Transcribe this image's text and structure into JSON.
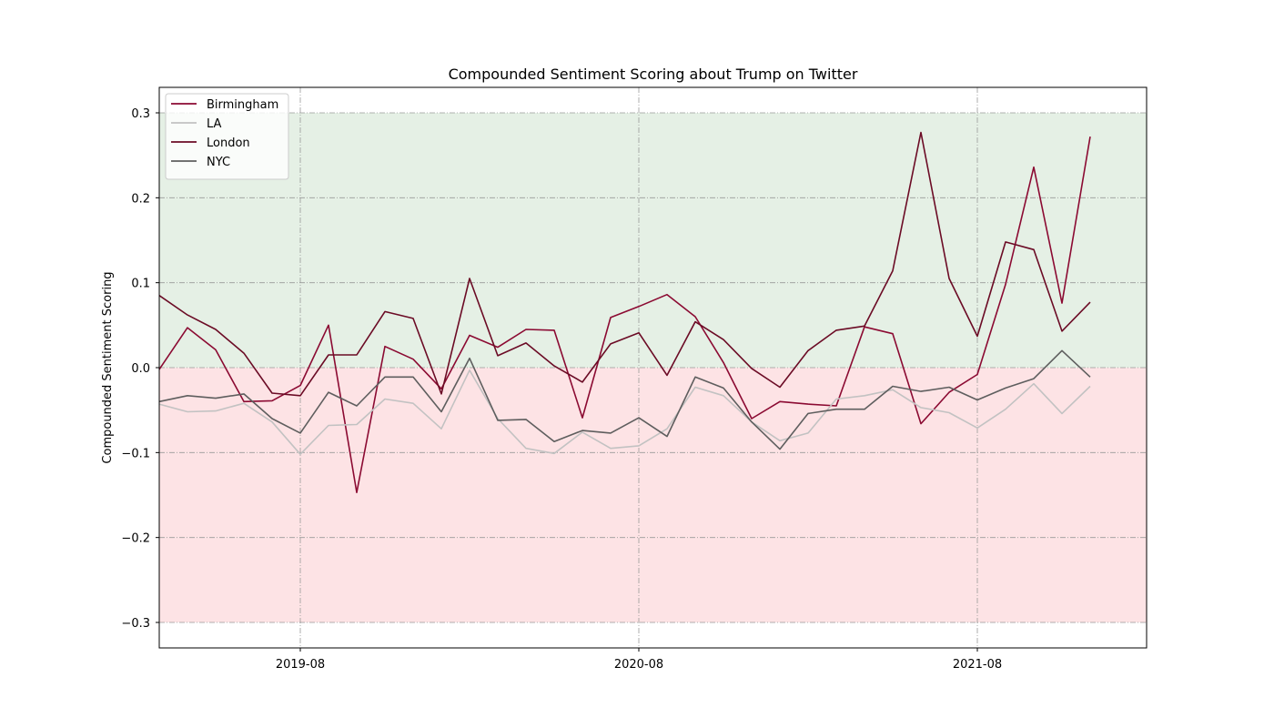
{
  "chart_data": {
    "type": "line",
    "title": "Compounded Sentiment Scoring about Trump on Twitter",
    "xlabel": "",
    "ylabel": "Compounded Sentiment Scoring",
    "x_start": "2019-03",
    "x_end": "2022-01",
    "xlim": [
      "2019-03",
      "2022-02"
    ],
    "ylim": [
      -0.33,
      0.33
    ],
    "x_ticks": [
      "2019-08",
      "2020-08",
      "2021-08"
    ],
    "y_ticks": [
      0.3,
      0.2,
      0.1,
      0.0,
      -0.1,
      -0.2,
      -0.3
    ],
    "y_tick_labels": [
      "0.3",
      "0.2",
      "0.1",
      "0.0",
      "−0.1",
      "−0.2",
      "−0.3"
    ],
    "grid": true,
    "legend_position": "top-left",
    "bands": [
      {
        "from": 0.0,
        "to": 0.3,
        "color": "#e5f0e5"
      },
      {
        "from": -0.3,
        "to": 0.0,
        "color": "#fde3e5"
      }
    ],
    "series": [
      {
        "name": "Birmingham",
        "color": "#8b0a32",
        "values": [
          -0.002,
          0.047,
          0.021,
          -0.04,
          -0.039,
          -0.021,
          0.05,
          -0.147,
          0.025,
          0.01,
          -0.025,
          0.038,
          0.024,
          0.045,
          0.044,
          -0.059,
          0.059,
          0.072,
          0.086,
          0.06,
          0.006,
          -0.06,
          -0.04,
          -0.043,
          -0.045,
          0.048,
          0.04,
          -0.066,
          -0.029,
          -0.008,
          0.098,
          0.236,
          0.076,
          0.272
        ]
      },
      {
        "name": "LA",
        "color": "#c2c2c2",
        "values": [
          -0.043,
          -0.052,
          -0.051,
          -0.042,
          -0.064,
          -0.102,
          -0.068,
          -0.067,
          -0.037,
          -0.042,
          -0.072,
          -0.003,
          -0.06,
          -0.095,
          -0.101,
          -0.076,
          -0.095,
          -0.092,
          -0.072,
          -0.023,
          -0.033,
          -0.064,
          -0.086,
          -0.077,
          -0.037,
          -0.033,
          -0.026,
          -0.047,
          -0.053,
          -0.071,
          -0.049,
          -0.019,
          -0.054,
          -0.022
        ]
      },
      {
        "name": "London",
        "color": "#6b0b25",
        "values": [
          0.085,
          0.062,
          0.045,
          0.017,
          -0.03,
          -0.033,
          0.015,
          0.015,
          0.066,
          0.058,
          -0.031,
          0.105,
          0.014,
          0.029,
          0.002,
          -0.017,
          0.028,
          0.041,
          -0.009,
          0.054,
          0.033,
          -0.001,
          -0.023,
          0.02,
          0.044,
          0.049,
          0.114,
          0.277,
          0.105,
          0.037,
          0.148,
          0.139,
          0.043,
          0.077
        ]
      },
      {
        "name": "NYC",
        "color": "#5e5e5e",
        "values": [
          -0.04,
          -0.033,
          -0.036,
          -0.031,
          -0.06,
          -0.077,
          -0.029,
          -0.045,
          -0.011,
          -0.011,
          -0.052,
          0.011,
          -0.062,
          -0.061,
          -0.087,
          -0.074,
          -0.077,
          -0.059,
          -0.081,
          -0.011,
          -0.024,
          -0.064,
          -0.096,
          -0.054,
          -0.049,
          -0.049,
          -0.022,
          -0.028,
          -0.023,
          -0.038,
          -0.024,
          -0.013,
          0.02,
          -0.011
        ]
      }
    ]
  }
}
